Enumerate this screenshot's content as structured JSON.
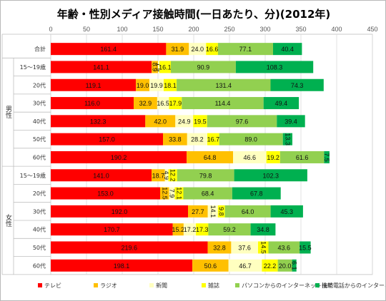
{
  "chart_data": {
    "type": "bar",
    "orientation": "horizontal",
    "stacked": true,
    "title": "年齢・性別メディア接触時間(一日あたり、分)(2012年)",
    "xlim": [
      0,
      450
    ],
    "x_ticks": [
      0,
      50,
      100,
      150,
      200,
      250,
      300,
      350,
      400,
      450
    ],
    "grid": true,
    "legend_position": "bottom",
    "categories": [
      "合計",
      "15〜19歳",
      "20代",
      "30代",
      "40代",
      "50代",
      "60代",
      "15〜19歳",
      "20代",
      "30代",
      "40代",
      "50代",
      "60代"
    ],
    "groups": [
      {
        "label": "男性",
        "rows": [
          1,
          6
        ]
      },
      {
        "label": "女性",
        "rows": [
          7,
          12
        ]
      }
    ],
    "series": [
      {
        "name": "テレビ",
        "color": "#ff0000",
        "values": [
          161.4,
          141.1,
          119.1,
          116.0,
          132.3,
          157.0,
          190.2,
          141.0,
          153.0,
          192.0,
          170.7,
          219.6,
          198.1
        ]
      },
      {
        "name": "ラジオ",
        "color": "#ffc000",
        "values": [
          31.9,
          8.9,
          19.0,
          32.9,
          42.0,
          33.8,
          64.8,
          18.7,
          12.5,
          27.7,
          15.2,
          32.8,
          50.6
        ]
      },
      {
        "name": "新聞",
        "color": "#ffffc0",
        "values": [
          24.0,
          1.9,
          19.9,
          16.5,
          24.9,
          28.2,
          46.6,
          4.9,
          7.9,
          14.1,
          17.2,
          37.6,
          46.7
        ]
      },
      {
        "name": "雑誌",
        "color": "#ffff00",
        "values": [
          16.6,
          16.1,
          18.1,
          17.9,
          19.5,
          16.7,
          19.2,
          12.2,
          12.1,
          9.8,
          17.3,
          14.5,
          22.2
        ]
      },
      {
        "name": "パソコンからのインターネット接続",
        "color": "#92d050",
        "values": [
          77.1,
          90.9,
          131.4,
          114.4,
          97.6,
          89.0,
          61.6,
          79.8,
          68.4,
          64.0,
          59.2,
          43.6,
          20.0
        ]
      },
      {
        "name": "携帯電話からのインターネット接続",
        "color": "#00b050",
        "values": [
          40.4,
          108.3,
          74.3,
          49.4,
          39.4,
          13.3,
          7.5,
          102.3,
          67.8,
          45.3,
          34.8,
          15.5,
          6.1
        ]
      }
    ]
  }
}
